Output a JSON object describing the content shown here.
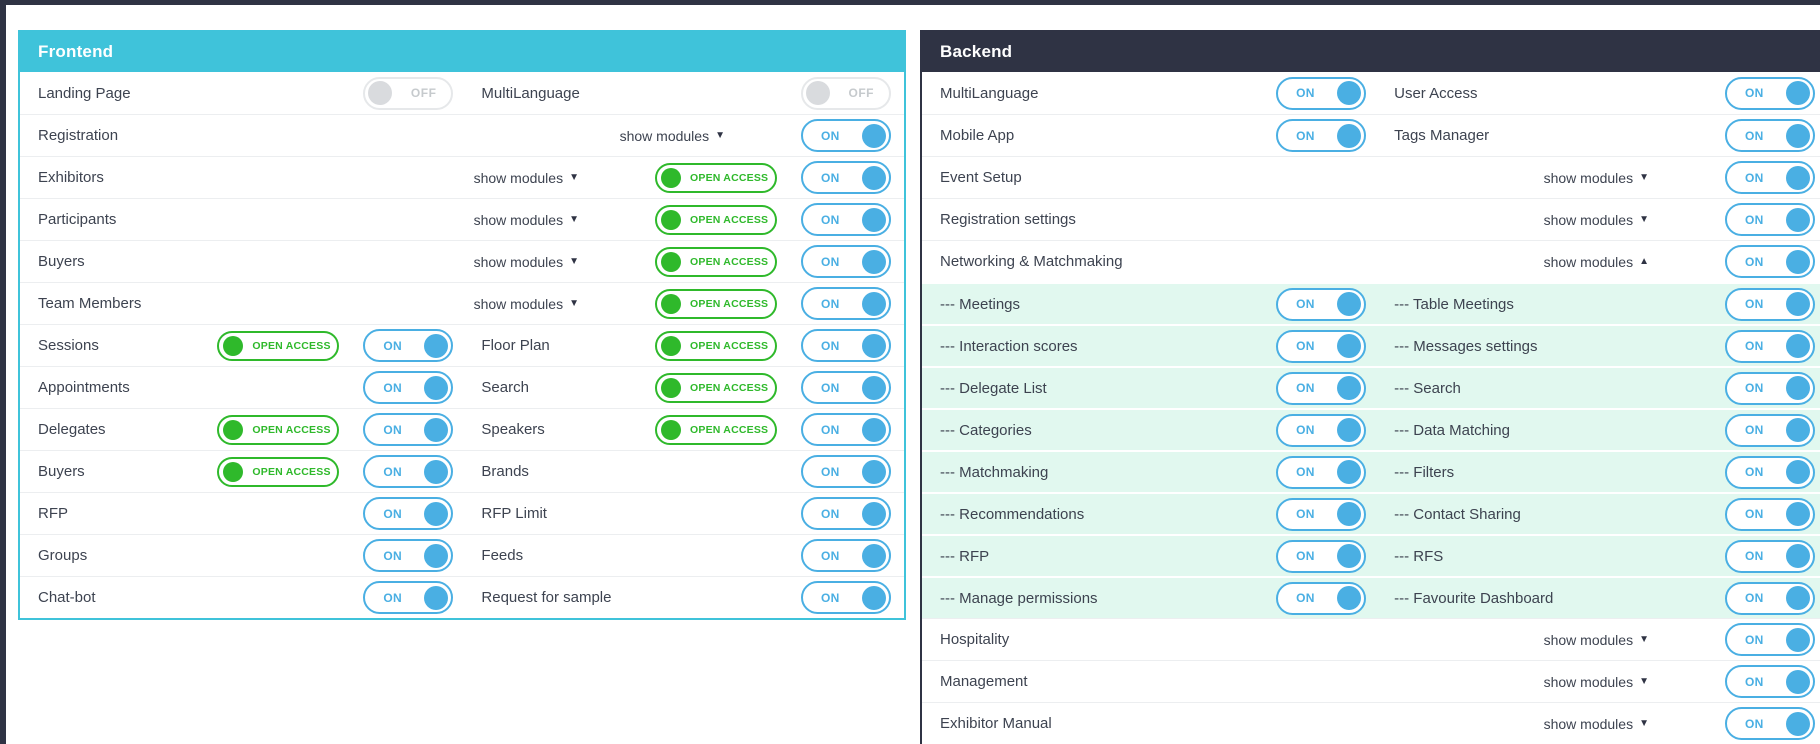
{
  "colors": {
    "frontend_header": "#3fc3da",
    "backend_header": "#2f3344",
    "toggle_on_blue": "#4aafe3",
    "toggle_off_gray": "#d9dbde",
    "open_access_green": "#2fb92b",
    "subrow_mint": "#e1f8ef"
  },
  "labels": {
    "toggle_on": "ON",
    "toggle_off": "OFF",
    "open_access": "OPEN ACCESS",
    "show_modules": "show modules",
    "arrow_collapsed": "▼",
    "arrow_expanded": "▲"
  },
  "panels": [
    {
      "id": "frontend",
      "title": "Frontend",
      "rows": [
        {
          "sub": false,
          "cells": [
            {
              "label": "Landing Page",
              "toggle": "off"
            },
            {
              "label": "MultiLanguage",
              "toggle": "off"
            }
          ]
        },
        {
          "sub": false,
          "cells": [
            {
              "label": "Registration",
              "show_modules": "collapsed",
              "toggle": "on"
            }
          ]
        },
        {
          "sub": false,
          "cells": [
            {
              "label": "Exhibitors",
              "show_modules": "collapsed",
              "open_access": true,
              "toggle": "on"
            }
          ]
        },
        {
          "sub": false,
          "cells": [
            {
              "label": "Participants",
              "show_modules": "collapsed",
              "open_access": true,
              "toggle": "on"
            }
          ]
        },
        {
          "sub": false,
          "cells": [
            {
              "label": "Buyers",
              "show_modules": "collapsed",
              "open_access": true,
              "toggle": "on"
            }
          ]
        },
        {
          "sub": false,
          "cells": [
            {
              "label": "Team Members",
              "show_modules": "collapsed",
              "open_access": true,
              "toggle": "on"
            }
          ]
        },
        {
          "sub": false,
          "cells": [
            {
              "label": "Sessions",
              "open_access": true,
              "toggle": "on"
            },
            {
              "label": "Floor Plan",
              "open_access": true,
              "toggle": "on"
            }
          ]
        },
        {
          "sub": false,
          "cells": [
            {
              "label": "Appointments",
              "toggle": "on"
            },
            {
              "label": "Search",
              "open_access": true,
              "toggle": "on"
            }
          ]
        },
        {
          "sub": false,
          "cells": [
            {
              "label": "Delegates",
              "open_access": true,
              "toggle": "on"
            },
            {
              "label": "Speakers",
              "open_access": true,
              "toggle": "on"
            }
          ]
        },
        {
          "sub": false,
          "cells": [
            {
              "label": "Buyers",
              "open_access": true,
              "toggle": "on"
            },
            {
              "label": "Brands",
              "toggle": "on"
            }
          ]
        },
        {
          "sub": false,
          "cells": [
            {
              "label": "RFP",
              "toggle": "on"
            },
            {
              "label": "RFP Limit",
              "toggle": "on"
            }
          ]
        },
        {
          "sub": false,
          "cells": [
            {
              "label": "Groups",
              "toggle": "on"
            },
            {
              "label": "Feeds",
              "toggle": "on"
            }
          ]
        },
        {
          "sub": false,
          "cells": [
            {
              "label": "Chat-bot",
              "toggle": "on"
            },
            {
              "label": "Request for sample",
              "toggle": "on"
            }
          ]
        }
      ]
    },
    {
      "id": "backend",
      "title": "Backend",
      "rows": [
        {
          "sub": false,
          "cells": [
            {
              "label": "MultiLanguage",
              "toggle": "on"
            },
            {
              "label": "User Access",
              "toggle": "on"
            }
          ]
        },
        {
          "sub": false,
          "cells": [
            {
              "label": "Mobile App",
              "toggle": "on"
            },
            {
              "label": "Tags Manager",
              "toggle": "on"
            }
          ]
        },
        {
          "sub": false,
          "cells": [
            {
              "label": "Event Setup",
              "show_modules": "collapsed",
              "toggle": "on"
            }
          ]
        },
        {
          "sub": false,
          "cells": [
            {
              "label": "Registration settings",
              "show_modules": "collapsed",
              "toggle": "on"
            }
          ]
        },
        {
          "sub": false,
          "cells": [
            {
              "label": "Networking & Matchmaking",
              "show_modules": "expanded",
              "toggle": "on"
            }
          ]
        },
        {
          "sub": true,
          "cells": [
            {
              "label": "--- Meetings",
              "toggle": "on"
            },
            {
              "label": "--- Table Meetings",
              "toggle": "on"
            }
          ]
        },
        {
          "sub": true,
          "cells": [
            {
              "label": "--- Interaction scores",
              "toggle": "on"
            },
            {
              "label": "--- Messages settings",
              "toggle": "on"
            }
          ]
        },
        {
          "sub": true,
          "cells": [
            {
              "label": "--- Delegate List",
              "toggle": "on"
            },
            {
              "label": "--- Search",
              "toggle": "on"
            }
          ]
        },
        {
          "sub": true,
          "cells": [
            {
              "label": "--- Categories",
              "toggle": "on"
            },
            {
              "label": "--- Data Matching",
              "toggle": "on"
            }
          ]
        },
        {
          "sub": true,
          "cells": [
            {
              "label": "--- Matchmaking",
              "toggle": "on"
            },
            {
              "label": "--- Filters",
              "toggle": "on"
            }
          ]
        },
        {
          "sub": true,
          "cells": [
            {
              "label": "--- Recommendations",
              "toggle": "on"
            },
            {
              "label": "--- Contact Sharing",
              "toggle": "on"
            }
          ]
        },
        {
          "sub": true,
          "cells": [
            {
              "label": "--- RFP",
              "toggle": "on"
            },
            {
              "label": "--- RFS",
              "toggle": "on"
            }
          ]
        },
        {
          "sub": true,
          "cells": [
            {
              "label": "--- Manage permissions",
              "toggle": "on"
            },
            {
              "label": "--- Favourite Dashboard",
              "toggle": "on"
            }
          ]
        },
        {
          "sub": false,
          "cells": [
            {
              "label": "Hospitality",
              "show_modules": "collapsed",
              "toggle": "on"
            }
          ]
        },
        {
          "sub": false,
          "cells": [
            {
              "label": "Management",
              "show_modules": "collapsed",
              "toggle": "on"
            }
          ]
        },
        {
          "sub": false,
          "cells": [
            {
              "label": "Exhibitor Manual",
              "show_modules": "collapsed",
              "toggle": "on"
            }
          ]
        }
      ]
    }
  ]
}
